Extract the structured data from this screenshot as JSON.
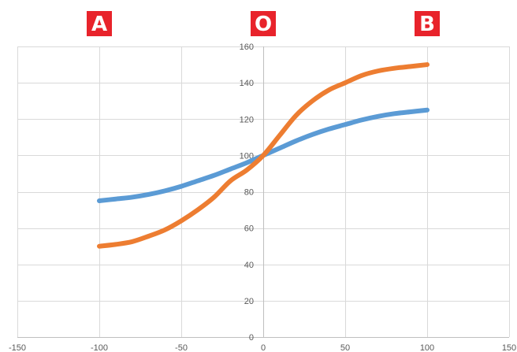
{
  "chart_data": {
    "type": "line",
    "title": "",
    "xlabel": "",
    "ylabel": "",
    "xlim": [
      -150,
      150
    ],
    "ylim": [
      0,
      160
    ],
    "x_ticks": [
      -150,
      -100,
      -50,
      0,
      50,
      100,
      150
    ],
    "y_ticks": [
      0,
      20,
      40,
      60,
      80,
      100,
      120,
      140,
      160
    ],
    "grid": true,
    "legend": "none",
    "annotations": [
      {
        "text": "A",
        "x": -100
      },
      {
        "text": "O",
        "x": 0
      },
      {
        "text": "B",
        "x": 100
      }
    ],
    "annotation_color": "#e8232b",
    "series": [
      {
        "color": "#5b9bd5",
        "x": [
          -100,
          -90,
          -80,
          -70,
          -60,
          -50,
          -40,
          -30,
          -20,
          -10,
          0,
          10,
          20,
          30,
          40,
          50,
          60,
          70,
          80,
          90,
          100
        ],
        "y": [
          75,
          76,
          77,
          78.5,
          80.5,
          83,
          86,
          89,
          92.5,
          96,
          100,
          104,
          108,
          111.5,
          114.5,
          117,
          119.5,
          121.5,
          123,
          124,
          125
        ]
      },
      {
        "color": "#ed7d31",
        "x": [
          -100,
          -90,
          -80,
          -70,
          -60,
          -50,
          -40,
          -30,
          -20,
          -10,
          0,
          10,
          20,
          30,
          40,
          50,
          60,
          70,
          80,
          90,
          100
        ],
        "y": [
          50,
          51,
          52.5,
          55.5,
          59,
          64,
          70,
          77,
          86,
          92,
          100,
          111,
          122,
          130,
          136,
          140,
          144,
          146.5,
          148,
          149,
          150
        ]
      }
    ]
  }
}
